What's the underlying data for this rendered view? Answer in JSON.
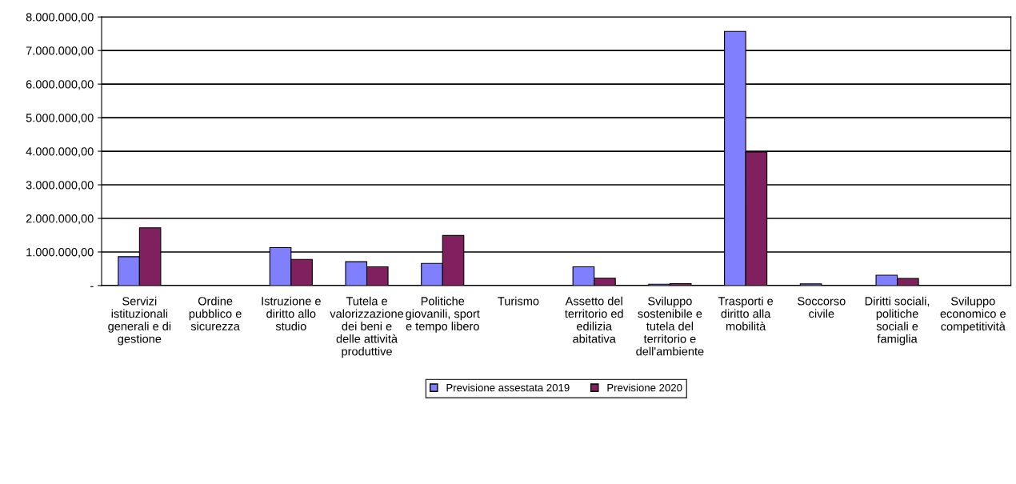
{
  "chart_data": {
    "type": "bar",
    "categories": [
      "Servizi\nistituzionali\ngenerali e di\ngestione",
      "Ordine\npubblico e\nsicurezza",
      "Istruzione e\ndiritto allo\nstudio",
      "Tutela e\nvalorizzazione\ndei beni e\ndelle attività\nproduttive",
      "Politiche\ngiovanili, sport\ne tempo libero",
      "Turismo",
      "Assetto del\nterritorio ed\nedilizia\nabitativa",
      "Sviluppo\nsostenibile e\ntutela del\nterritorio e\ndell'ambiente",
      "Trasporti e\ndiritto alla\nmobilità",
      "Soccorso\ncivile",
      "Diritti sociali,\npolitiche\nsociali e\nfamiglia",
      "Sviluppo\neconomico e\ncompetitività"
    ],
    "series": [
      {
        "name": "Previsione assestata 2019",
        "color": "#8080ff",
        "values": [
          860000,
          null,
          1130000,
          710000,
          660000,
          null,
          560000,
          40000,
          7570000,
          50000,
          310000,
          null
        ]
      },
      {
        "name": "Previsione 2020",
        "color": "#80205f",
        "values": [
          1720000,
          null,
          780000,
          560000,
          1490000,
          null,
          220000,
          60000,
          3980000,
          null,
          210000,
          null
        ]
      }
    ],
    "ylim": [
      0,
      8000000
    ],
    "yticks": [
      {
        "value": 0,
        "label": "-"
      },
      {
        "value": 1000000,
        "label": "1.000.000,00"
      },
      {
        "value": 2000000,
        "label": "2.000.000,00"
      },
      {
        "value": 3000000,
        "label": "3.000.000,00"
      },
      {
        "value": 4000000,
        "label": "4.000.000,00"
      },
      {
        "value": 5000000,
        "label": "5.000.000,00"
      },
      {
        "value": 6000000,
        "label": "6.000.000,00"
      },
      {
        "value": 7000000,
        "label": "7.000.000,00"
      },
      {
        "value": 8000000,
        "label": "8.000.000,00"
      }
    ],
    "grid": "y",
    "legend": "bottom"
  }
}
